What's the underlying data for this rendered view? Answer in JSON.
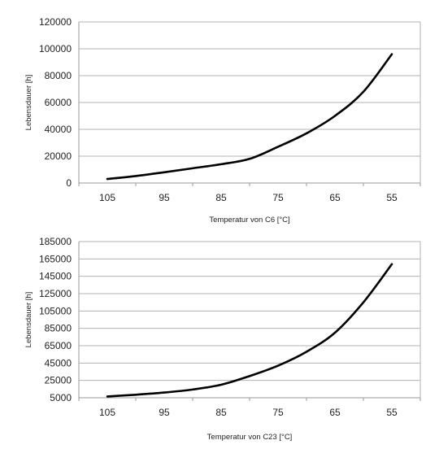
{
  "chart_data": [
    {
      "type": "line",
      "title": "",
      "xlabel": "Temperatur von C6 [°C]",
      "ylabel": "Lebensdauer [h]",
      "categories": [
        "105",
        "95",
        "85",
        "75",
        "65",
        "55"
      ],
      "x": [
        105,
        100,
        95,
        90,
        85,
        80,
        75,
        70,
        65,
        60,
        55
      ],
      "series": [
        {
          "values": [
            3000,
            5200,
            8000,
            11000,
            14000,
            18000,
            27000,
            37000,
            50000,
            68000,
            96000
          ]
        }
      ],
      "yticks": [
        "120000",
        "100000",
        "80000",
        "60000",
        "40000",
        "20000",
        "0"
      ],
      "ylim": [
        0,
        120000
      ],
      "grid": true,
      "legend": "none",
      "line_color": "#000000"
    },
    {
      "type": "line",
      "title": "",
      "xlabel": "Temperatur von C23 [°C]",
      "ylabel": "Lebensdauer [h]",
      "categories": [
        "105",
        "95",
        "85",
        "75",
        "65",
        "55"
      ],
      "x": [
        105,
        100,
        95,
        90,
        85,
        80,
        75,
        70,
        65,
        60,
        55
      ],
      "series": [
        {
          "values": [
            6500,
            8500,
            11000,
            14500,
            20000,
            30000,
            42000,
            58000,
            80000,
            115000,
            159000
          ]
        }
      ],
      "yticks": [
        "185000",
        "165000",
        "145000",
        "125000",
        "105000",
        "85000",
        "65000",
        "45000",
        "25000",
        "5000"
      ],
      "ylim": [
        5000,
        185000
      ],
      "grid": true,
      "legend": "none",
      "line_color": "#000000"
    }
  ]
}
